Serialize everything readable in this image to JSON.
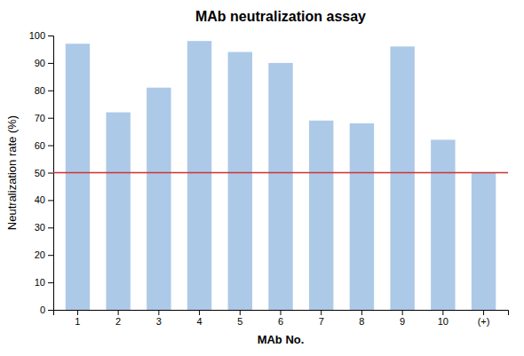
{
  "chart_data": {
    "type": "bar",
    "title": "MAb neutralization assay",
    "xlabel": "MAb No.",
    "ylabel": "Neutralization rate (%)",
    "categories": [
      "1",
      "2",
      "3",
      "4",
      "5",
      "6",
      "7",
      "8",
      "9",
      "10",
      "(+)"
    ],
    "values": [
      97,
      72,
      81,
      98,
      94,
      90,
      69,
      68,
      96,
      62,
      50
    ],
    "color": "#adc9e8",
    "threshold": 50,
    "threshold_color": "#cc3333",
    "ylim": [
      0,
      100
    ],
    "yticks": [
      0,
      10,
      20,
      30,
      40,
      50,
      60,
      70,
      80,
      90,
      100
    ],
    "grid": false
  }
}
